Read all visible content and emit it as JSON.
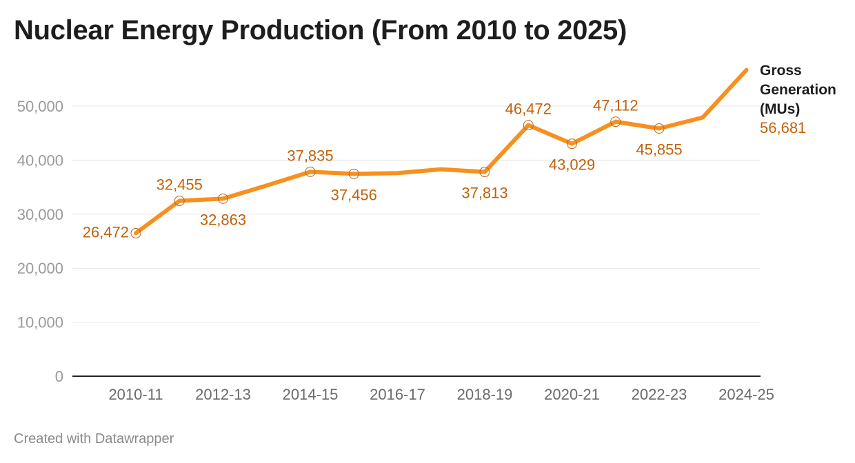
{
  "title": "Nuclear Energy Production (From 2010 to 2025)",
  "footer": "Created with Datawrapper",
  "colors": {
    "line": "#f7901e",
    "label": "#c0620a",
    "grid": "#e3e3e3",
    "axis": "#222222"
  },
  "chart_data": {
    "type": "line",
    "title": "Nuclear Energy Production (From 2010 to 2025)",
    "xlabel": "",
    "ylabel": "",
    "ylim": [
      0,
      60000
    ],
    "yticks": [
      0,
      10000,
      20000,
      30000,
      40000,
      50000
    ],
    "ytick_labels": [
      "0",
      "10,000",
      "20,000",
      "30,000",
      "40,000",
      "50,000"
    ],
    "xtick_labels": [
      "2010-11",
      "2012-13",
      "2014-15",
      "2016-17",
      "2018-19",
      "2020-21",
      "2022-23",
      "2024-25"
    ],
    "categories": [
      "2010-11",
      "2011-12",
      "2012-13",
      "2013-14",
      "2014-15",
      "2015-16",
      "2016-17",
      "2017-18",
      "2018-19",
      "2019-20",
      "2020-21",
      "2021-22",
      "2022-23",
      "2023-24",
      "2024-25"
    ],
    "series": [
      {
        "name": "Gross Generation (MUs)",
        "name_lines": [
          "Gross",
          "Generation",
          "(MUs)"
        ],
        "values": [
          26472,
          32455,
          32863,
          35300,
          37835,
          37456,
          37600,
          38300,
          37813,
          46472,
          43029,
          47112,
          45855,
          47900,
          56681
        ],
        "labels": [
          "26,472",
          "32,455",
          "32,863",
          null,
          "37,835",
          "37,456",
          null,
          null,
          "37,813",
          "46,472",
          "43,029",
          "47,112",
          "45,855",
          null,
          "56,681"
        ]
      }
    ]
  }
}
